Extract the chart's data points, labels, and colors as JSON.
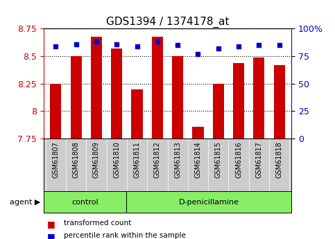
{
  "title": "GDS1394 / 1374178_at",
  "categories": [
    "GSM61807",
    "GSM61808",
    "GSM61809",
    "GSM61810",
    "GSM61811",
    "GSM61812",
    "GSM61813",
    "GSM61814",
    "GSM61815",
    "GSM61816",
    "GSM61817",
    "GSM61818"
  ],
  "transformed_count": [
    8.25,
    8.5,
    8.68,
    8.57,
    8.2,
    8.68,
    8.5,
    7.86,
    8.25,
    8.44,
    8.49,
    8.42
  ],
  "percentile_rank": [
    84,
    86,
    88,
    86,
    84,
    88,
    85,
    77,
    82,
    84,
    85,
    85
  ],
  "ylim_left": [
    7.75,
    8.75
  ],
  "ylim_right": [
    0,
    100
  ],
  "yticks_left": [
    7.75,
    8.0,
    8.25,
    8.5,
    8.75
  ],
  "ytick_labels_left": [
    "7.75",
    "8",
    "8.25",
    "8.5",
    "8.75"
  ],
  "yticks_right": [
    0,
    25,
    50,
    75,
    100
  ],
  "ytick_labels_right": [
    "0",
    "25",
    "50",
    "75",
    "100%"
  ],
  "bar_color": "#cc0000",
  "dot_color": "#0000cc",
  "bar_bottom": 7.75,
  "n_control": 4,
  "n_dpen": 8,
  "agent_labels": [
    "control",
    "D-penicillamine"
  ],
  "agent_bg_color": "#88ee66",
  "tick_bg_color": "#cccccc",
  "legend_red_label": "transformed count",
  "legend_blue_label": "percentile rank within the sample",
  "title_fontsize": 11,
  "tick_fontsize": 7,
  "ax_left_color": "#cc0000",
  "ax_right_color": "#0000cc",
  "fig_width": 4.83,
  "fig_height": 3.45,
  "dpi": 100
}
